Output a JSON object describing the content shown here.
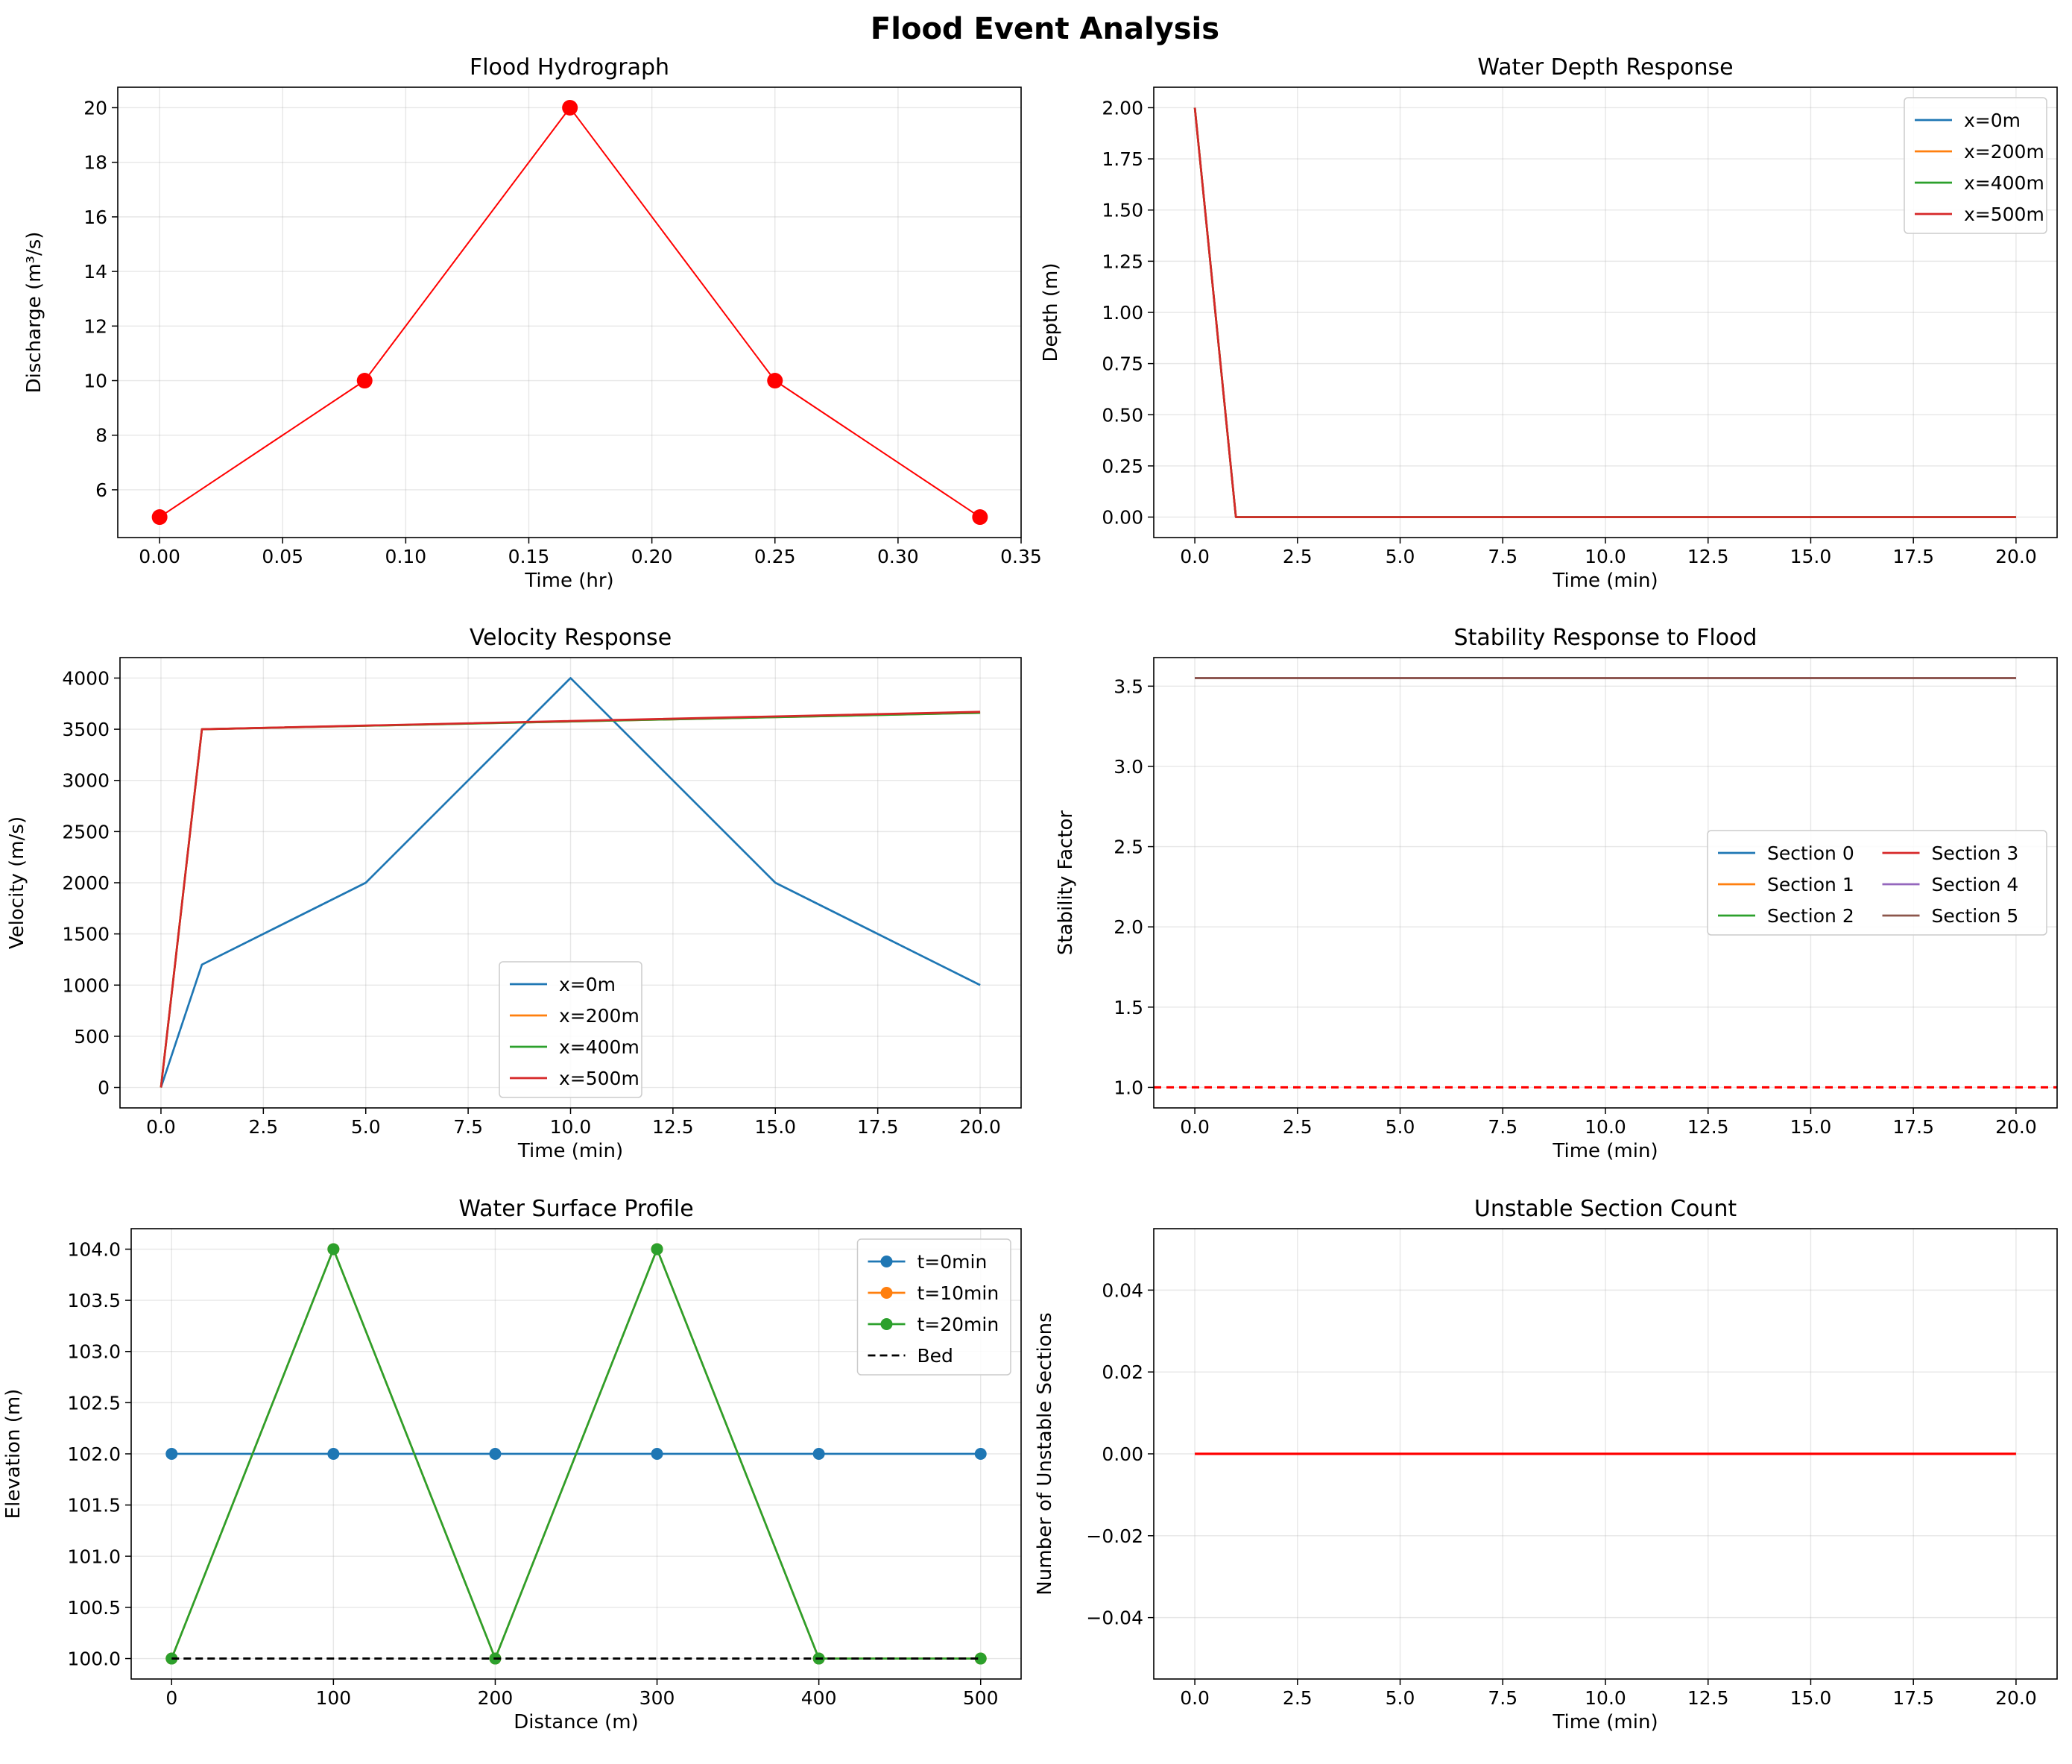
{
  "figure": {
    "title": "Flood Event Analysis"
  },
  "chart_data": [
    {
      "id": "hydrograph",
      "type": "line",
      "title": "Flood Hydrograph",
      "xlabel": "Time (hr)",
      "ylabel": "Discharge (m³/s)",
      "xlim": [
        -0.017,
        0.35
      ],
      "ylim": [
        4.25,
        20.75
      ],
      "xticks": [
        0.0,
        0.05,
        0.1,
        0.15,
        0.2,
        0.25,
        0.3,
        0.35
      ],
      "xtick_labels": [
        "0.00",
        "0.05",
        "0.10",
        "0.15",
        "0.20",
        "0.25",
        "0.30",
        "0.35"
      ],
      "yticks": [
        6,
        8,
        10,
        12,
        14,
        16,
        18,
        20
      ],
      "ytick_labels": [
        "6",
        "8",
        "10",
        "12",
        "14",
        "16",
        "18",
        "20"
      ],
      "grid": true,
      "legend": null,
      "series": [
        {
          "name": "",
          "color": "#ff0000",
          "width": 2,
          "marker": "circle",
          "marker_size": 6,
          "x": [
            0.0,
            0.0833,
            0.1667,
            0.25,
            0.3333
          ],
          "y": [
            5,
            10,
            20,
            10,
            5
          ]
        }
      ]
    },
    {
      "id": "depth",
      "type": "line",
      "title": "Water Depth Response",
      "xlabel": "Time (min)",
      "ylabel": "Depth (m)",
      "xlim": [
        -1.0,
        21.0
      ],
      "ylim": [
        -0.1,
        2.1
      ],
      "xticks": [
        0,
        2.5,
        5,
        7.5,
        10,
        12.5,
        15,
        17.5,
        20
      ],
      "xtick_labels": [
        "0.0",
        "2.5",
        "5.0",
        "7.5",
        "10.0",
        "12.5",
        "15.0",
        "17.5",
        "20.0"
      ],
      "yticks": [
        0,
        0.25,
        0.5,
        0.75,
        1.0,
        1.25,
        1.5,
        1.75,
        2.0
      ],
      "ytick_labels": [
        "0.00",
        "0.25",
        "0.50",
        "0.75",
        "1.00",
        "1.25",
        "1.50",
        "1.75",
        "2.00"
      ],
      "grid": true,
      "legend": {
        "loc": "upper right",
        "ncol": 1
      },
      "series": [
        {
          "name": "x=0m",
          "color": "#1f77b4",
          "x": [
            0,
            1,
            5,
            10,
            15,
            20
          ],
          "y": [
            2.0,
            0,
            0,
            0,
            0,
            0
          ]
        },
        {
          "name": "x=200m",
          "color": "#ff7f0e",
          "x": [
            0,
            1,
            5,
            10,
            15,
            20
          ],
          "y": [
            2.0,
            0,
            0,
            0,
            0,
            0
          ]
        },
        {
          "name": "x=400m",
          "color": "#2ca02c",
          "x": [
            0,
            1,
            5,
            10,
            15,
            20
          ],
          "y": [
            2.0,
            0,
            0,
            0,
            0,
            0
          ]
        },
        {
          "name": "x=500m",
          "color": "#d62728",
          "x": [
            0,
            1,
            5,
            10,
            15,
            20
          ],
          "y": [
            2.0,
            0,
            0,
            0,
            0,
            0
          ]
        }
      ]
    },
    {
      "id": "velocity",
      "type": "line",
      "title": "Velocity Response",
      "xlabel": "Time (min)",
      "ylabel": "Velocity (m/s)",
      "xlim": [
        -1.0,
        21.0
      ],
      "ylim": [
        -200,
        4200
      ],
      "xticks": [
        0,
        2.5,
        5,
        7.5,
        10,
        12.5,
        15,
        17.5,
        20
      ],
      "xtick_labels": [
        "0.0",
        "2.5",
        "5.0",
        "7.5",
        "10.0",
        "12.5",
        "15.0",
        "17.5",
        "20.0"
      ],
      "yticks": [
        0,
        500,
        1000,
        1500,
        2000,
        2500,
        3000,
        3500,
        4000
      ],
      "ytick_labels": [
        "0",
        "500",
        "1000",
        "1500",
        "2000",
        "2500",
        "3000",
        "3500",
        "4000"
      ],
      "grid": true,
      "legend": {
        "loc": "lower center",
        "ncol": 1
      },
      "series": [
        {
          "name": "x=0m",
          "color": "#1f77b4",
          "x": [
            0,
            1,
            5,
            10,
            15,
            20
          ],
          "y": [
            0,
            1200,
            2000,
            4000,
            2000,
            1000
          ]
        },
        {
          "name": "x=200m",
          "color": "#ff7f0e",
          "x": [
            0,
            1,
            20
          ],
          "y": [
            0,
            3500,
            3660
          ]
        },
        {
          "name": "x=400m",
          "color": "#2ca02c",
          "x": [
            0,
            1,
            20
          ],
          "y": [
            0,
            3500,
            3660
          ]
        },
        {
          "name": "x=500m",
          "color": "#d62728",
          "x": [
            0,
            1,
            20
          ],
          "y": [
            0,
            3500,
            3670
          ]
        }
      ]
    },
    {
      "id": "stability",
      "type": "line",
      "title": "Stability Response to Flood",
      "xlabel": "Time (min)",
      "ylabel": "Stability Factor",
      "xlim": [
        -1.0,
        21.0
      ],
      "ylim": [
        0.872,
        3.678
      ],
      "xticks": [
        0,
        2.5,
        5,
        7.5,
        10,
        12.5,
        15,
        17.5,
        20
      ],
      "xtick_labels": [
        "0.0",
        "2.5",
        "5.0",
        "7.5",
        "10.0",
        "12.5",
        "15.0",
        "17.5",
        "20.0"
      ],
      "yticks": [
        1.0,
        1.5,
        2.0,
        2.5,
        3.0,
        3.5
      ],
      "ytick_labels": [
        "1.0",
        "1.5",
        "2.0",
        "2.5",
        "3.0",
        "3.5"
      ],
      "grid": true,
      "legend": {
        "loc": "center right",
        "ncol": 2
      },
      "hline": {
        "y": 1.0,
        "color": "#ff0000",
        "dash": "10,7",
        "width": 3.2
      },
      "series": [
        {
          "name": "Section 0",
          "color": "#1f77b4",
          "x": [
            0,
            20
          ],
          "y": [
            3.55,
            3.55
          ]
        },
        {
          "name": "Section 1",
          "color": "#ff7f0e",
          "x": [
            0,
            20
          ],
          "y": [
            3.55,
            3.55
          ]
        },
        {
          "name": "Section 2",
          "color": "#2ca02c",
          "x": [
            0,
            20
          ],
          "y": [
            3.55,
            3.55
          ]
        },
        {
          "name": "Section 3",
          "color": "#d62728",
          "x": [
            0,
            20
          ],
          "y": [
            3.55,
            3.55
          ]
        },
        {
          "name": "Section 4",
          "color": "#9467bd",
          "x": [
            0,
            20
          ],
          "y": [
            3.55,
            3.55
          ]
        },
        {
          "name": "Section 5",
          "color": "#8c564b",
          "x": [
            0,
            20
          ],
          "y": [
            3.55,
            3.55
          ]
        }
      ]
    },
    {
      "id": "profile",
      "type": "line",
      "title": "Water Surface Profile",
      "xlabel": "Distance (m)",
      "ylabel": "Elevation (m)",
      "xlim": [
        -25,
        525
      ],
      "ylim": [
        99.8,
        104.2
      ],
      "xticks": [
        0,
        100,
        200,
        300,
        400,
        500
      ],
      "xtick_labels": [
        "0",
        "100",
        "200",
        "300",
        "400",
        "500"
      ],
      "yticks": [
        100.0,
        100.5,
        101.0,
        101.5,
        102.0,
        102.5,
        103.0,
        103.5,
        104.0
      ],
      "ytick_labels": [
        "100.0",
        "100.5",
        "101.0",
        "101.5",
        "102.0",
        "102.5",
        "103.0",
        "103.5",
        "104.0"
      ],
      "grid": true,
      "legend": {
        "loc": "upper right",
        "ncol": 1
      },
      "series": [
        {
          "name": "t=0min",
          "color": "#1f77b4",
          "marker": "circle",
          "x": [
            0,
            100,
            200,
            300,
            400,
            500
          ],
          "y": [
            102,
            102,
            102,
            102,
            102,
            102
          ]
        },
        {
          "name": "t=10min",
          "color": "#ff7f0e",
          "marker": "circle",
          "x": [
            0,
            100,
            200,
            300,
            400,
            500
          ],
          "y": [
            100,
            104,
            100,
            104,
            100,
            100
          ]
        },
        {
          "name": "t=20min",
          "color": "#2ca02c",
          "marker": "circle",
          "x": [
            0,
            100,
            200,
            300,
            400,
            500
          ],
          "y": [
            100,
            104,
            100,
            104,
            100,
            100
          ]
        },
        {
          "name": "Bed",
          "color": "#000000",
          "dash": "10,6",
          "width": 2.8,
          "x": [
            0,
            500
          ],
          "y": [
            100,
            100
          ]
        }
      ]
    },
    {
      "id": "unstable",
      "type": "line",
      "title": "Unstable Section Count",
      "xlabel": "Time (min)",
      "ylabel": "Number of Unstable Sections",
      "xlim": [
        -1.0,
        21.0
      ],
      "ylim": [
        -0.055,
        0.055
      ],
      "xticks": [
        0,
        2.5,
        5,
        7.5,
        10,
        12.5,
        15,
        17.5,
        20
      ],
      "xtick_labels": [
        "0.0",
        "2.5",
        "5.0",
        "7.5",
        "10.0",
        "12.5",
        "15.0",
        "17.5",
        "20.0"
      ],
      "yticks": [
        -0.04,
        -0.02,
        0.0,
        0.02,
        0.04
      ],
      "ytick_labels": [
        "−0.04",
        "−0.02",
        "0.00",
        "0.02",
        "0.04"
      ],
      "grid": true,
      "legend": null,
      "series": [
        {
          "name": "",
          "color": "#ff0000",
          "width": 3.2,
          "x": [
            0,
            20
          ],
          "y": [
            0,
            0
          ]
        }
      ]
    }
  ]
}
